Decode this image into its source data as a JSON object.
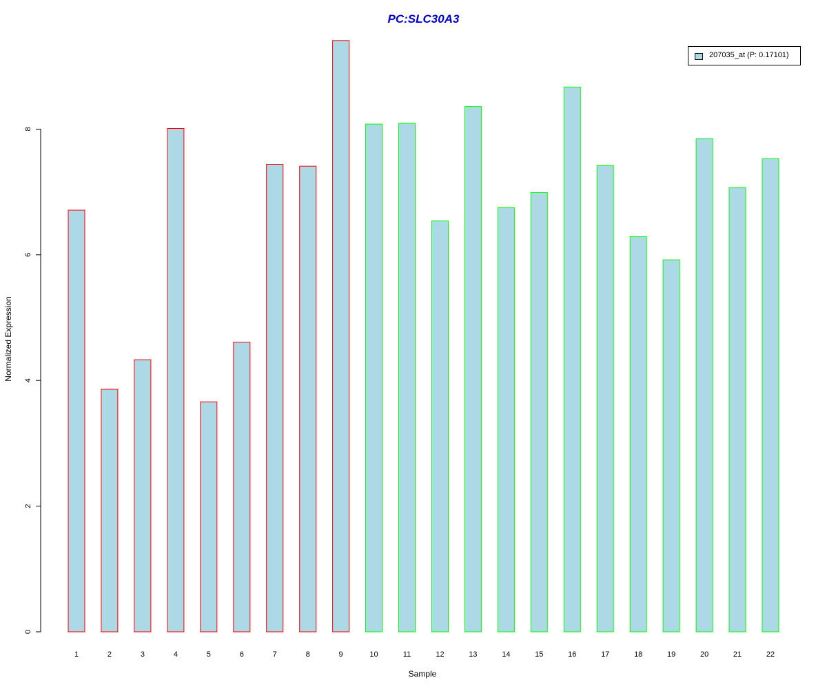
{
  "chart_data": {
    "type": "bar",
    "title": "PC:SLC30A3",
    "xlabel": "Sample",
    "ylabel": "Normalized Expression",
    "categories": [
      "1",
      "2",
      "3",
      "4",
      "5",
      "6",
      "7",
      "8",
      "9",
      "10",
      "11",
      "12",
      "13",
      "14",
      "15",
      "16",
      "17",
      "18",
      "19",
      "20",
      "21",
      "22"
    ],
    "series": [
      {
        "name": "207035_at (P: 0.17101)",
        "values": [
          6.71,
          3.86,
          4.33,
          8.01,
          3.66,
          4.61,
          7.44,
          7.41,
          9.41,
          8.08,
          8.09,
          6.54,
          8.36,
          6.75,
          6.99,
          8.67,
          7.42,
          6.29,
          5.92,
          7.85,
          7.07,
          7.53
        ]
      }
    ],
    "bar_fill": "#add8e6",
    "group_border_colors": [
      "#ff0000",
      "#ff0000",
      "#ff0000",
      "#ff0000",
      "#ff0000",
      "#ff0000",
      "#ff0000",
      "#ff0000",
      "#ff0000",
      "#00ff00",
      "#00ff00",
      "#00ff00",
      "#00ff00",
      "#00ff00",
      "#00ff00",
      "#00ff00",
      "#00ff00",
      "#00ff00",
      "#00ff00",
      "#00ff00",
      "#00ff00",
      "#00ff00"
    ],
    "yticks": [
      0,
      2,
      4,
      6,
      8
    ],
    "ylim": [
      0,
      9.41
    ],
    "grid": false,
    "legend_position": "top-right",
    "title_color": "#0000cd"
  }
}
